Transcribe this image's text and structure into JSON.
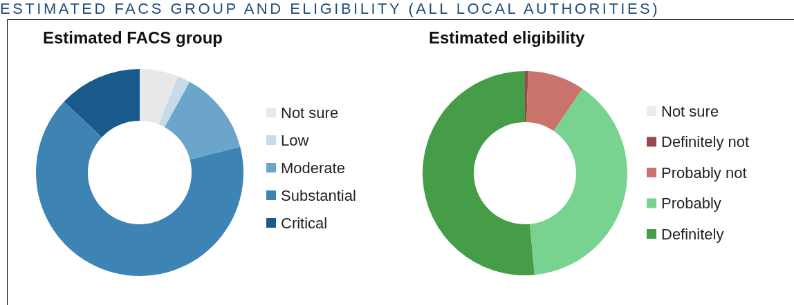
{
  "chart_data": [
    {
      "type": "donut",
      "title": "Estimated FACS group",
      "annotations": [
        "ESTIMATED FACS GROUP AND ELIGIBILITY (ALL LOCAL AUTHORITIES)"
      ],
      "categories": [
        "Not sure",
        "Low",
        "Moderate",
        "Substantial",
        "Critical"
      ],
      "values": [
        6,
        2,
        13,
        66,
        13
      ],
      "colors": [
        "#e8e8e8",
        "#c6dbe9",
        "#6ba5cb",
        "#3d84b5",
        "#1a5a8a"
      ],
      "legend": "right"
    },
    {
      "type": "donut",
      "title": "Estimated eligibility",
      "categories": [
        "Not sure",
        "Definitely not",
        "Probably not",
        "Probably",
        "Definitely"
      ],
      "values": [
        0,
        0.5,
        9,
        39,
        51.5
      ],
      "colors": [
        "#ebebeb",
        "#964949",
        "#c8736b",
        "#78d390",
        "#459d48"
      ],
      "legend": "right"
    }
  ]
}
